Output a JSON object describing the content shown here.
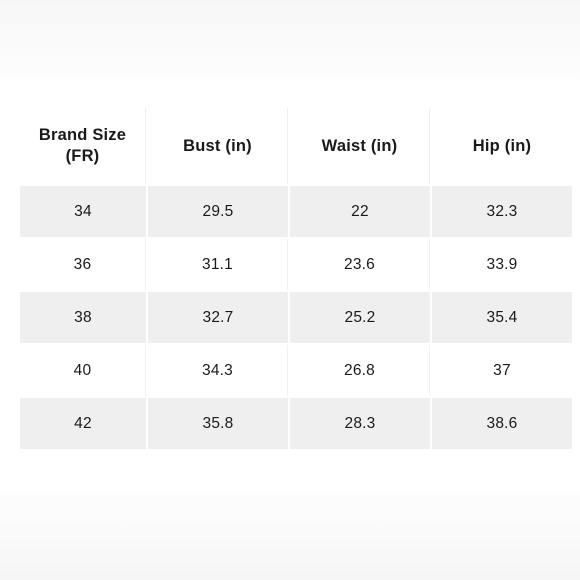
{
  "table": {
    "headers": [
      "Brand Size\n(FR)",
      "Bust (in)",
      "Waist (in)",
      "Hip (in)"
    ],
    "rows": [
      [
        "34",
        "29.5",
        "22",
        "32.3"
      ],
      [
        "36",
        "31.1",
        "23.6",
        "33.9"
      ],
      [
        "38",
        "32.7",
        "25.2",
        "35.4"
      ],
      [
        "40",
        "34.3",
        "26.8",
        "37"
      ],
      [
        "42",
        "35.8",
        "28.3",
        "38.6"
      ]
    ]
  },
  "colors": {
    "shaded_row": "#efefef",
    "background": "#ffffff",
    "text": "#1a1a1a"
  }
}
